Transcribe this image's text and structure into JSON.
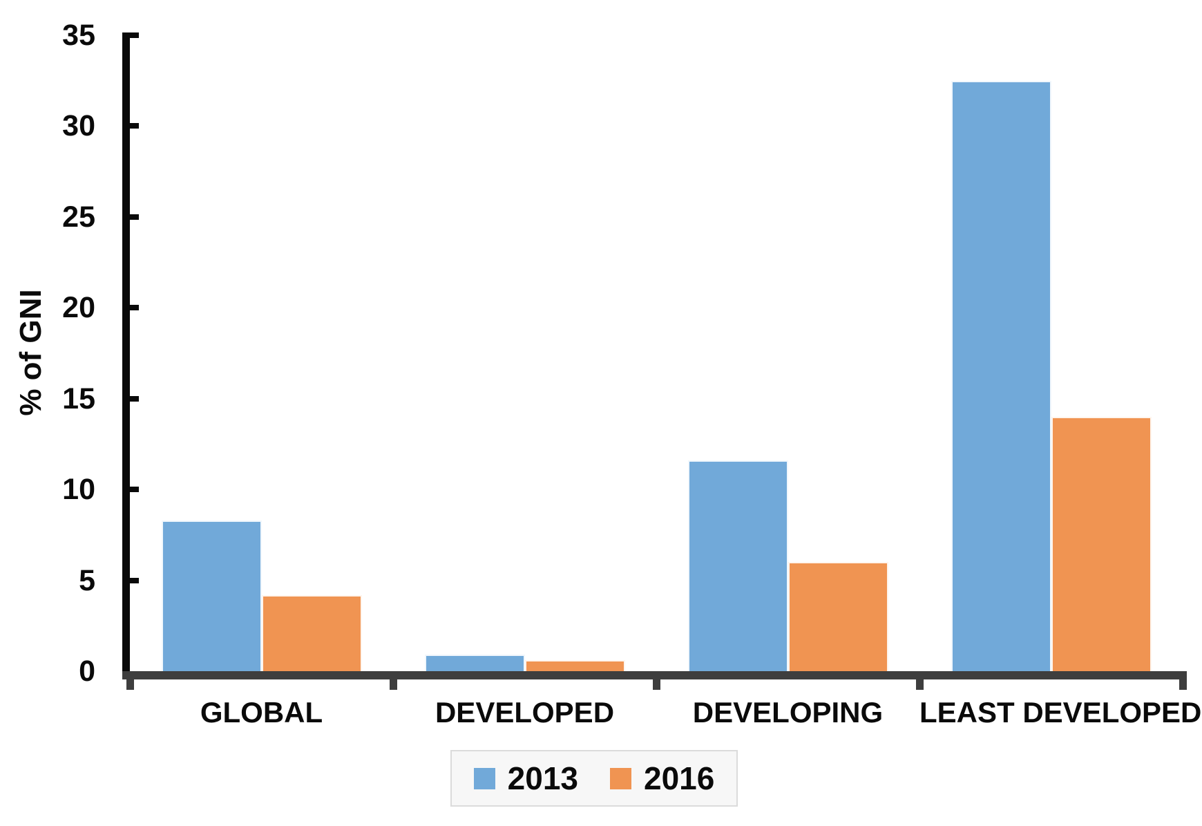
{
  "chart_data": {
    "type": "bar",
    "title": "",
    "xlabel": "",
    "ylabel": "% of GNI",
    "categories": [
      "GLOBAL",
      "DEVELOPED",
      "DEVELOPING",
      "LEAST DEVELOPED"
    ],
    "series": [
      {
        "name": "2013",
        "color": "#71A9D9",
        "values": [
          8.3,
          0.9,
          11.6,
          32.5
        ]
      },
      {
        "name": "2016",
        "color": "#F09452",
        "values": [
          4.2,
          0.6,
          6.0,
          14.0
        ]
      }
    ],
    "ylim": [
      0,
      35
    ],
    "yticks": [
      0,
      5,
      10,
      15,
      20,
      25,
      30,
      35
    ],
    "grid": false,
    "legend_position": "bottom"
  },
  "colors": {
    "bar_2013": "#71A9D9",
    "bar_2016": "#F09452",
    "y_axis": "#0A0A0A",
    "x_axis": "#3E3E3E",
    "text": "#0A0A0A",
    "legend_background": "#F7F7F7",
    "legend_border": "#DBDBDB"
  }
}
